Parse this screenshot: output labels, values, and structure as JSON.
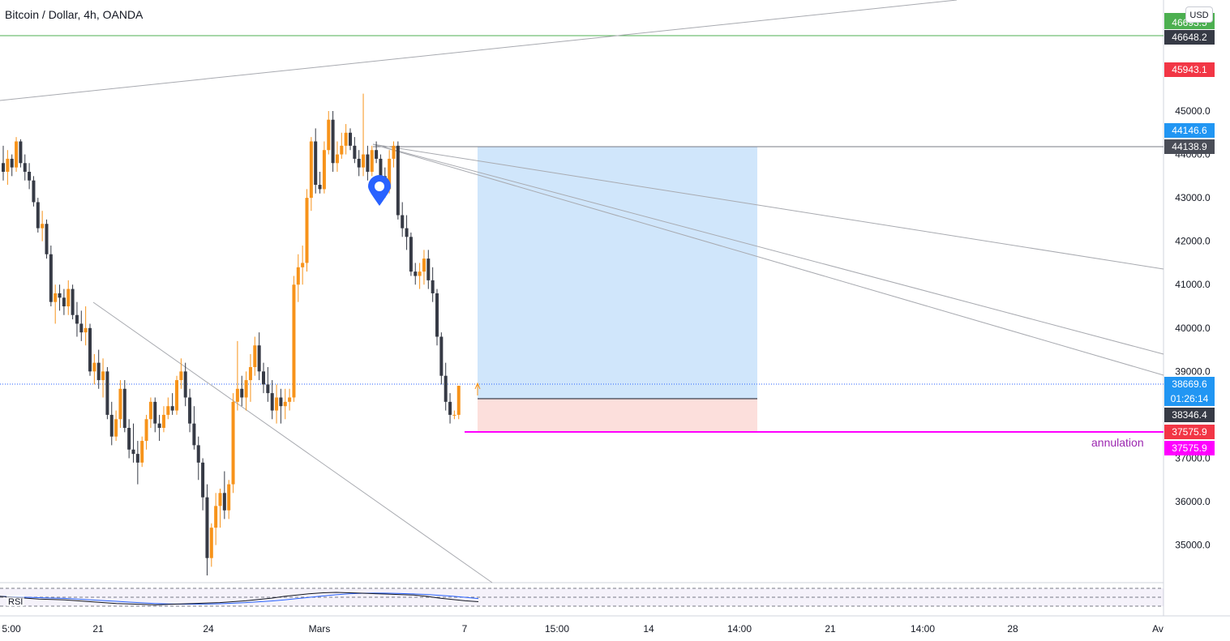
{
  "header": {
    "title": "Bitcoin / Dollar, 4h, OANDA",
    "currency_button": "USD"
  },
  "annotation_label": "annulation",
  "colors": {
    "bull": "#f7931a",
    "bear": "#363a45",
    "green_line": "#4caf50",
    "profit_zone": "#bcdcfa",
    "loss_zone": "#fcd9d6",
    "stop_line": "#ff00ff",
    "trend_lines": "#a8aab0",
    "rsi_line": "#131722",
    "rsi_ma": "#2962ff",
    "marker": "#2962ff"
  },
  "chart_data": {
    "type": "candlestick",
    "title": "Bitcoin / Dollar, 4h, OANDA",
    "y_axis": {
      "ticks": [
        45000,
        44000,
        43000,
        42000,
        41000,
        40000,
        39000,
        37000,
        36000,
        35000
      ],
      "tick_labels": [
        "45000.0",
        "44000.0",
        "43000.0",
        "42000.0",
        "41000.0",
        "40000.0",
        "39000.0",
        "37000.0",
        "36000.0",
        "35000.0"
      ],
      "ylim": [
        34200,
        47500
      ]
    },
    "x_axis": {
      "tick_labels": [
        "5:00",
        "21",
        "24",
        "Mars",
        "7",
        "15:00",
        "14",
        "14:00",
        "21",
        "14:00",
        "28",
        "Av"
      ]
    },
    "price_labels": [
      {
        "value": "46693.5",
        "role": "top-green"
      },
      {
        "value": "46648.2",
        "role": "dark"
      },
      {
        "value": "45943.1",
        "role": "red"
      },
      {
        "value": "44146.6",
        "role": "blue"
      },
      {
        "value": "44138.9",
        "role": "dark-hatched"
      },
      {
        "value": "38669.6",
        "role": "last-price"
      },
      {
        "value": "01:26:14",
        "role": "countdown"
      },
      {
        "value": "38346.4",
        "role": "dark"
      },
      {
        "value": "37575.9",
        "role": "red"
      },
      {
        "value": "37575.9",
        "role": "magenta"
      }
    ],
    "position": {
      "type": "long",
      "entry": 38346.4,
      "target": 44138.9,
      "stop": 37575.9
    },
    "horizontal_levels": [
      46648.2,
      44138.9,
      38669.6,
      37575.9
    ],
    "candles_ohlc": [
      [
        43800,
        44200,
        43400,
        43600
      ],
      [
        43600,
        44100,
        43300,
        43900
      ],
      [
        43900,
        44000,
        43500,
        43700
      ],
      [
        43700,
        44400,
        43600,
        44300
      ],
      [
        44300,
        44350,
        43700,
        43800
      ],
      [
        43800,
        44000,
        43400,
        43600
      ],
      [
        43600,
        43800,
        43200,
        43400
      ],
      [
        43400,
        43500,
        42800,
        42900
      ],
      [
        42900,
        43000,
        42200,
        42300
      ],
      [
        42300,
        42700,
        42000,
        42400
      ],
      [
        42400,
        42500,
        41600,
        41700
      ],
      [
        41700,
        41900,
        40500,
        40600
      ],
      [
        40600,
        41000,
        40100,
        40800
      ],
      [
        40800,
        41000,
        40400,
        40700
      ],
      [
        40700,
        40900,
        40300,
        40500
      ],
      [
        40500,
        41100,
        40300,
        40900
      ],
      [
        40900,
        41000,
        40200,
        40300
      ],
      [
        40300,
        40600,
        39800,
        40100
      ],
      [
        40100,
        40400,
        39700,
        39900
      ],
      [
        39900,
        40500,
        39600,
        40000
      ],
      [
        40000,
        40100,
        38900,
        39000
      ],
      [
        39000,
        39400,
        38700,
        39200
      ],
      [
        39200,
        39500,
        38600,
        38800
      ],
      [
        38800,
        39300,
        38400,
        39000
      ],
      [
        39000,
        39100,
        37900,
        38000
      ],
      [
        38000,
        38300,
        37300,
        37500
      ],
      [
        37500,
        38100,
        37400,
        37900
      ],
      [
        37900,
        38800,
        37700,
        38600
      ],
      [
        38600,
        38800,
        37600,
        37700
      ],
      [
        37700,
        37900,
        37000,
        37200
      ],
      [
        37200,
        37800,
        36900,
        37100
      ],
      [
        37100,
        37400,
        36400,
        36900
      ],
      [
        36900,
        37500,
        36800,
        37400
      ],
      [
        37400,
        38000,
        37200,
        37900
      ],
      [
        37900,
        38400,
        37700,
        38300
      ],
      [
        38300,
        38400,
        37600,
        37800
      ],
      [
        37800,
        38000,
        37400,
        37700
      ],
      [
        37700,
        38200,
        37600,
        38000
      ],
      [
        38000,
        38400,
        37900,
        38200
      ],
      [
        38200,
        38500,
        38000,
        38100
      ],
      [
        38100,
        38900,
        38000,
        38800
      ],
      [
        38800,
        39300,
        38600,
        39000
      ],
      [
        39000,
        39200,
        38200,
        38400
      ],
      [
        38400,
        38600,
        37600,
        37800
      ],
      [
        37800,
        38200,
        37200,
        37300
      ],
      [
        37300,
        37500,
        36500,
        36900
      ],
      [
        36900,
        37000,
        35800,
        36100
      ],
      [
        36100,
        36400,
        34300,
        34700
      ],
      [
        34700,
        35500,
        34500,
        35400
      ],
      [
        35400,
        36200,
        35000,
        35900
      ],
      [
        35900,
        36300,
        35400,
        36200
      ],
      [
        36200,
        36700,
        35600,
        35800
      ],
      [
        35800,
        36500,
        35600,
        36400
      ],
      [
        36400,
        38500,
        36200,
        38300
      ],
      [
        38300,
        39700,
        38100,
        38600
      ],
      [
        38600,
        38900,
        38200,
        38400
      ],
      [
        38400,
        39000,
        38100,
        38800
      ],
      [
        38800,
        39400,
        38300,
        39100
      ],
      [
        39100,
        39800,
        38900,
        39600
      ],
      [
        39600,
        39900,
        38800,
        39000
      ],
      [
        39000,
        39200,
        38500,
        38700
      ],
      [
        38700,
        39100,
        38300,
        38500
      ],
      [
        38500,
        38800,
        37900,
        38100
      ],
      [
        38100,
        38700,
        37800,
        38400
      ],
      [
        38400,
        38600,
        37800,
        38200
      ],
      [
        38200,
        38600,
        37900,
        38300
      ],
      [
        38300,
        38600,
        38100,
        38400
      ],
      [
        38400,
        41200,
        38300,
        41000
      ],
      [
        41000,
        41700,
        40600,
        41400
      ],
      [
        41400,
        41900,
        41000,
        41500
      ],
      [
        41500,
        43200,
        41300,
        43000
      ],
      [
        43000,
        44400,
        42700,
        44300
      ],
      [
        44300,
        44600,
        43100,
        43300
      ],
      [
        43300,
        43600,
        43100,
        43200
      ],
      [
        43200,
        44300,
        43100,
        44100
      ],
      [
        44100,
        45000,
        44000,
        44800
      ],
      [
        44800,
        45000,
        43600,
        43800
      ],
      [
        43800,
        44300,
        43600,
        44000
      ],
      [
        44000,
        44500,
        43900,
        44200
      ],
      [
        44200,
        44700,
        44000,
        44500
      ],
      [
        44500,
        44600,
        44100,
        44200
      ],
      [
        44200,
        44400,
        43800,
        43900
      ],
      [
        43900,
        44100,
        43500,
        43700
      ],
      [
        43700,
        45400,
        43500,
        44000
      ],
      [
        44000,
        44200,
        43400,
        43600
      ],
      [
        43600,
        44200,
        43500,
        44100
      ],
      [
        44100,
        44300,
        43800,
        43900
      ],
      [
        43900,
        44000,
        43300,
        43500
      ],
      [
        43500,
        43700,
        43000,
        43200
      ],
      [
        43200,
        44100,
        43100,
        43900
      ],
      [
        43900,
        44300,
        43700,
        44200
      ],
      [
        44200,
        44300,
        42500,
        42600
      ],
      [
        42600,
        42900,
        42100,
        42300
      ],
      [
        42300,
        42600,
        41800,
        42100
      ],
      [
        42100,
        42200,
        41200,
        41300
      ],
      [
        41300,
        41500,
        41000,
        41200
      ],
      [
        41200,
        41500,
        40900,
        41300
      ],
      [
        41300,
        41800,
        41000,
        41600
      ],
      [
        41600,
        41800,
        40900,
        41100
      ],
      [
        41100,
        41400,
        40600,
        40800
      ],
      [
        40800,
        40900,
        39600,
        39800
      ],
      [
        39800,
        39900,
        38700,
        38900
      ],
      [
        38900,
        39200,
        38100,
        38300
      ],
      [
        38300,
        38500,
        37800,
        38000
      ],
      [
        38000,
        38100,
        37900,
        38000
      ],
      [
        38000,
        38669.6,
        37900,
        38669.6
      ]
    ],
    "indicator": {
      "name": "RSI",
      "values": [
        52,
        50,
        48,
        46,
        45,
        44,
        42,
        40,
        38,
        36,
        35,
        34,
        33,
        34,
        35,
        36,
        37,
        38,
        40,
        42,
        45,
        48,
        52,
        55,
        58,
        60,
        61,
        60,
        59,
        58,
        57,
        56,
        55,
        52,
        48,
        45,
        42,
        40
      ]
    }
  }
}
